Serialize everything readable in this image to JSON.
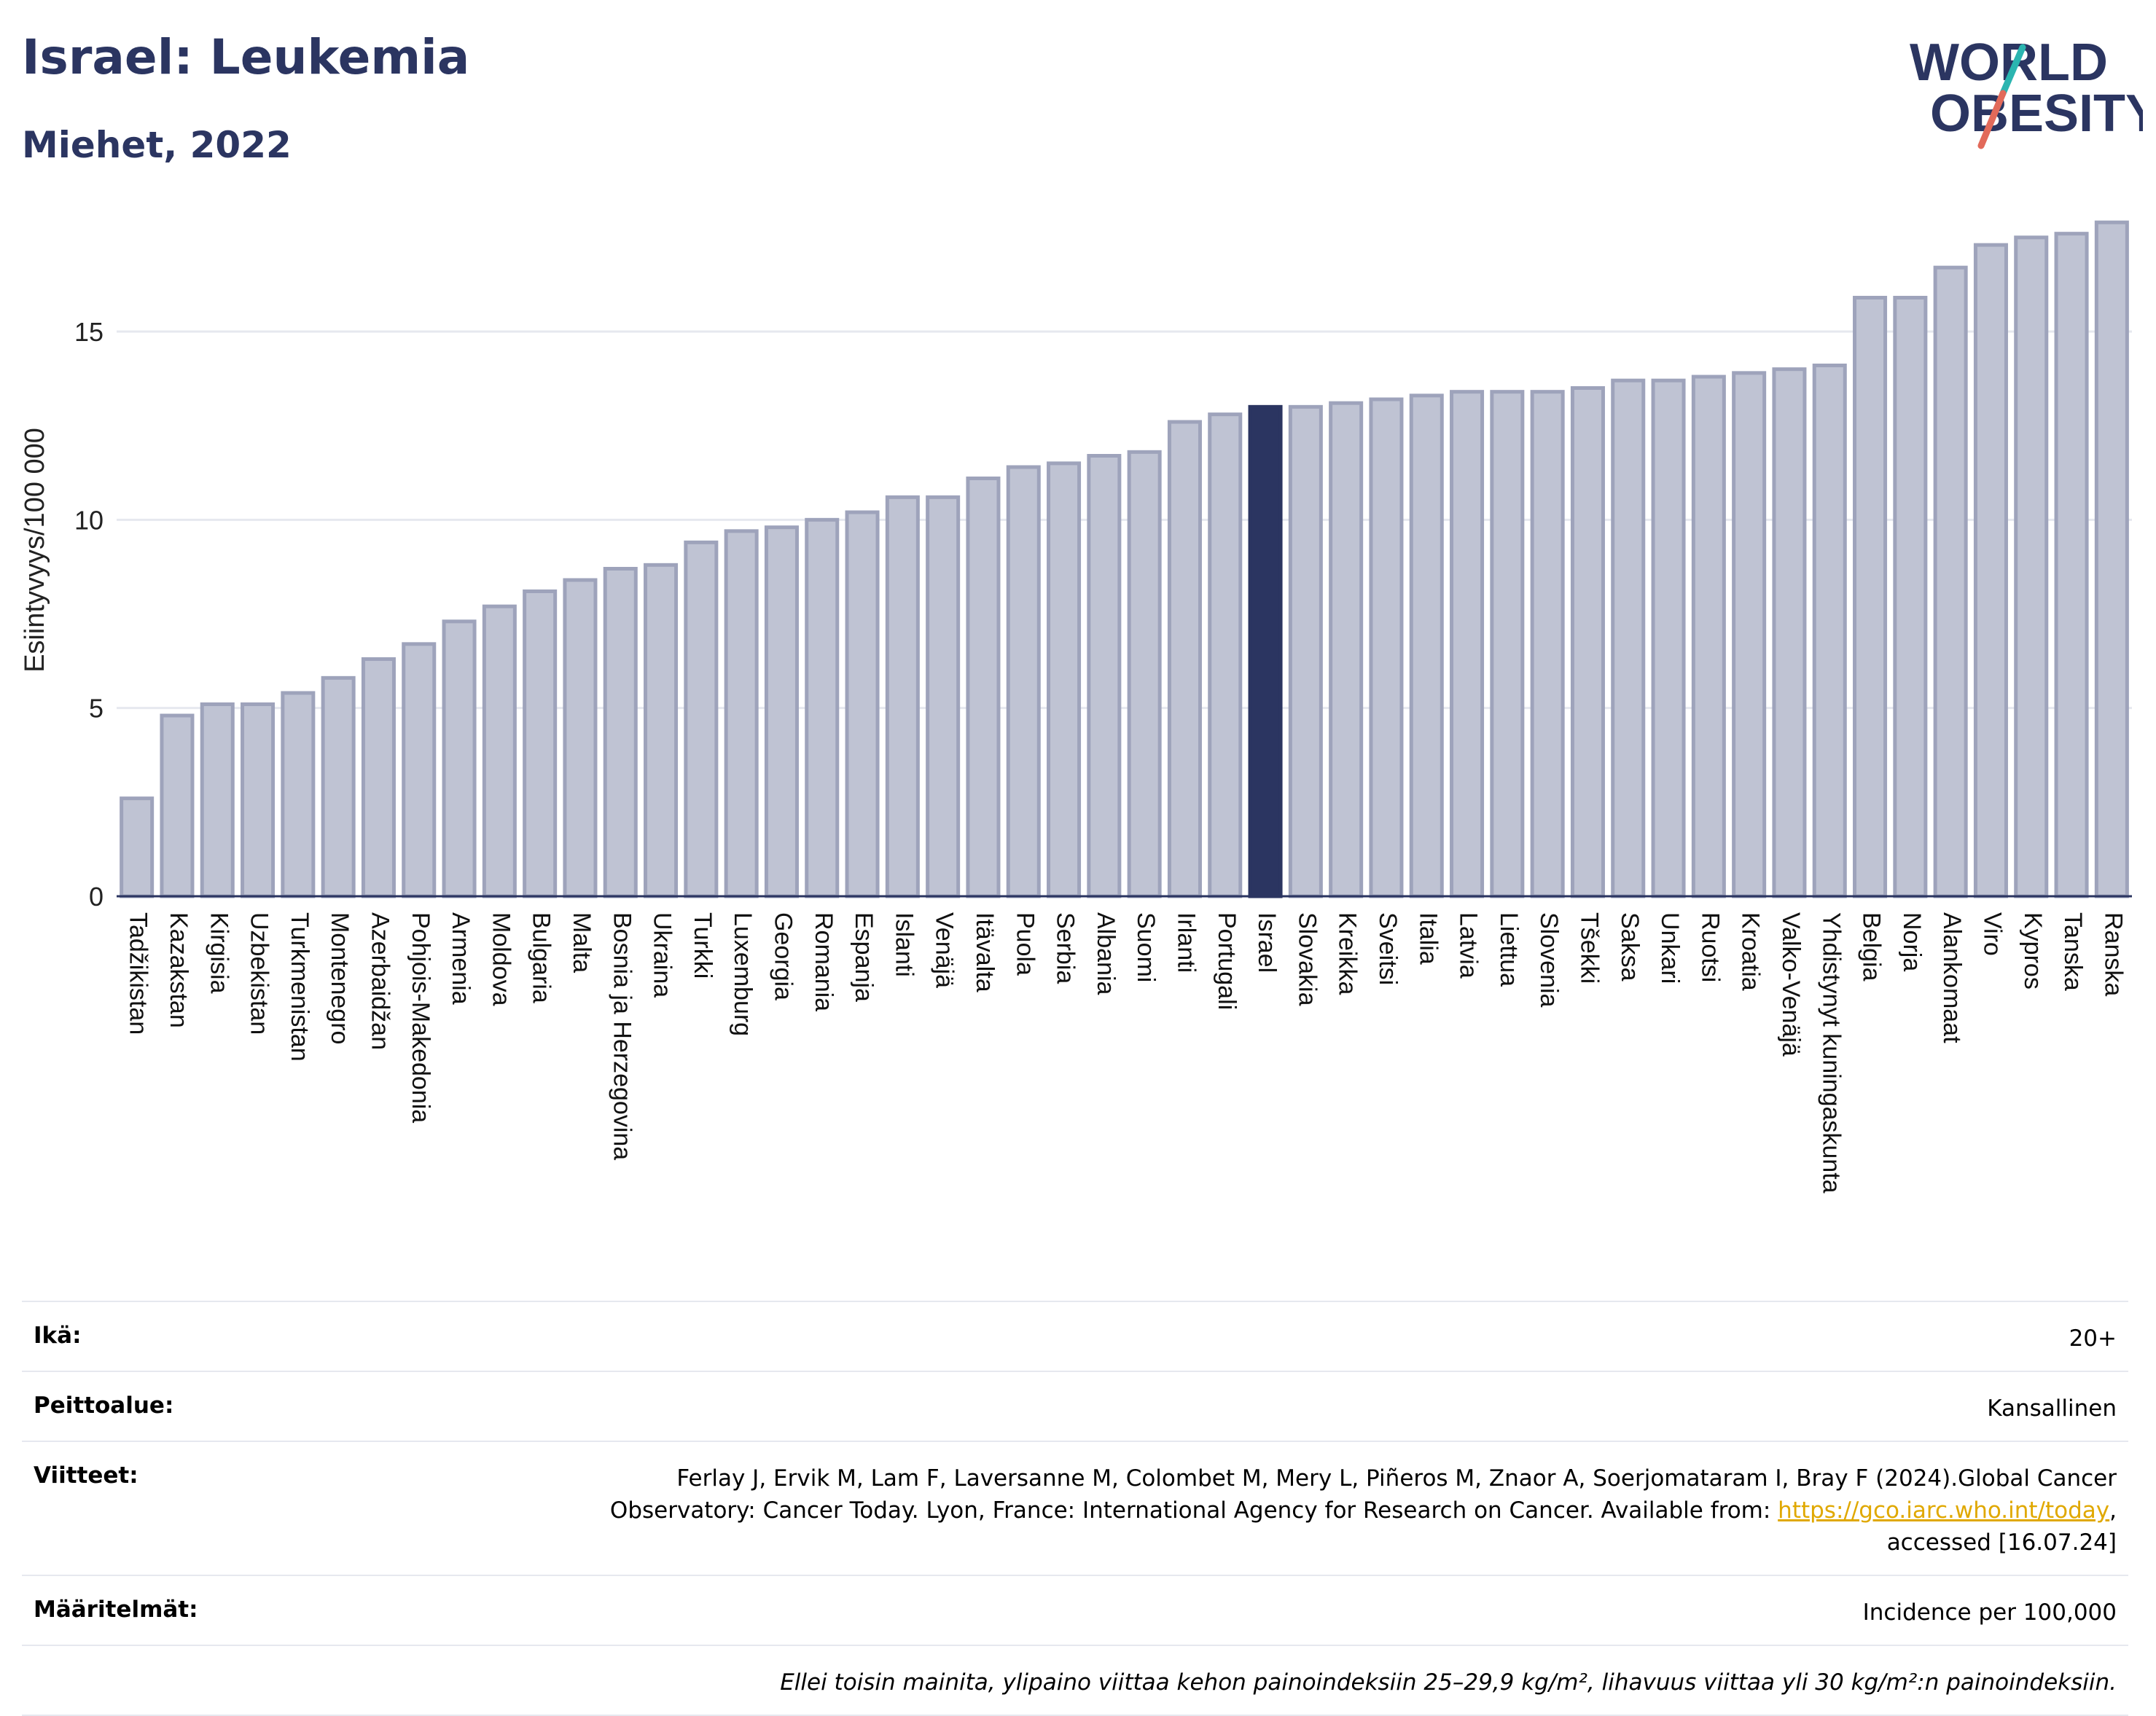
{
  "header": {
    "title": "Israel: Leukemia",
    "subtitle": "Miehet, 2022"
  },
  "logo": {
    "line1": "WORLD",
    "line2": "OBESITY",
    "colors": {
      "text": "#2b3561",
      "slash_teal": "#2bb5b0",
      "slash_red": "#e26a5a"
    }
  },
  "colors": {
    "highlight": "#2b3561",
    "bar_fill": "#bfc3d3",
    "bar_stroke": "#9ea3bb"
  },
  "chart_data": {
    "type": "bar",
    "ylabel": "Esiintyvyys/100 000",
    "ylim": [
      0,
      18
    ],
    "yticks": [
      0,
      5,
      10,
      15
    ],
    "grid": true,
    "highlight": "Israel",
    "categories": [
      "Tadžikistan",
      "Kazakstan",
      "Kirgisia",
      "Uzbekistan",
      "Turkmenistan",
      "Montenegro",
      "Azerbaidžan",
      "Pohjois-Makedonia",
      "Armenia",
      "Moldova",
      "Bulgaria",
      "Malta",
      "Bosnia ja Herzegovina",
      "Ukraina",
      "Turkki",
      "Luxemburg",
      "Georgia",
      "Romania",
      "Espanja",
      "Islanti",
      "Venäjä",
      "Itävalta",
      "Puola",
      "Serbia",
      "Albania",
      "Suomi",
      "Irlanti",
      "Portugali",
      "Israel",
      "Slovakia",
      "Kreikka",
      "Sveitsi",
      "Italia",
      "Latvia",
      "Liettua",
      "Slovenia",
      "Tšekki",
      "Saksa",
      "Unkari",
      "Ruotsi",
      "Kroatia",
      "Valko-Venäjä",
      "Yhdistynyt kuningaskunta",
      "Belgia",
      "Norja",
      "Alankomaat",
      "Viro",
      "Kypros",
      "Tanska",
      "Ranska"
    ],
    "values": [
      2.6,
      4.8,
      5.1,
      5.1,
      5.4,
      5.8,
      6.3,
      6.7,
      7.3,
      7.7,
      8.1,
      8.4,
      8.7,
      8.8,
      9.4,
      9.7,
      9.8,
      10.0,
      10.2,
      10.6,
      10.6,
      11.1,
      11.4,
      11.5,
      11.7,
      11.8,
      12.6,
      12.8,
      13.0,
      13.0,
      13.1,
      13.2,
      13.3,
      13.4,
      13.4,
      13.4,
      13.5,
      13.7,
      13.7,
      13.8,
      13.9,
      14.0,
      14.1,
      15.9,
      15.9,
      16.7,
      17.3,
      17.5,
      17.6,
      17.9
    ]
  },
  "info": {
    "age_label": "Ikä:",
    "age_value": "20+",
    "coverage_label": "Peittoalue:",
    "coverage_value": "Kansallinen",
    "refs_label": "Viitteet:",
    "refs_line1": "Ferlay J, Ervik M, Lam F, Laversanne M, Colombet M, Mery L, Piñeros M, Znaor A, Soerjomataram I, Bray F (2024).Global Cancer",
    "refs_line2_pre": "Observatory: Cancer Today. Lyon, France: International Agency for Research on Cancer. Available from: ",
    "refs_link": "https://gco.iarc.who.int/today",
    "refs_line2_post": ",",
    "refs_line3": "accessed [16.07.24]",
    "defs_label": "Määritelmät:",
    "defs_value": "Incidence per 100,000",
    "note": "Ellei toisin mainita, ylipaino viittaa kehon painoindeksiin 25–29,9 kg/m², lihavuus viittaa yli 30 kg/m²:n painoindeksiin."
  }
}
